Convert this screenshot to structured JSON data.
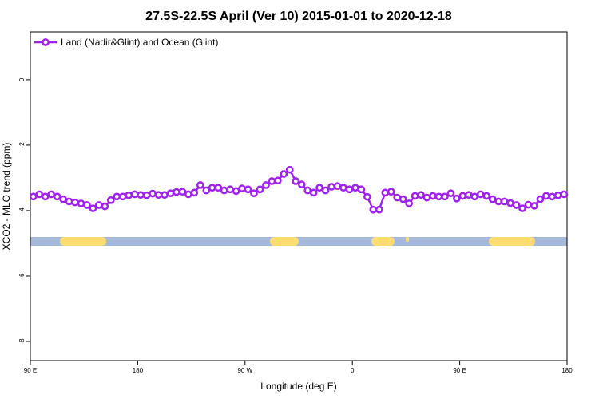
{
  "chart_data": {
    "type": "line",
    "title": "27.5S-22.5S April (Ver 10)   2015-01-01 to 2020-12-18",
    "xlabel": "Longitude (deg E)",
    "ylabel": "XCO2 - MLO trend (ppm)",
    "xlim": [
      90,
      540
    ],
    "ylim": [
      -8.585,
      1.46
    ],
    "xticks": [
      {
        "value": 90,
        "label": "90 E"
      },
      {
        "value": 180,
        "label": "180"
      },
      {
        "value": 270,
        "label": "90 W"
      },
      {
        "value": 360,
        "label": "0"
      },
      {
        "value": 450,
        "label": "90 E"
      },
      {
        "value": 540,
        "label": "180"
      }
    ],
    "yticks": [
      0,
      -2,
      -4,
      -6,
      -8
    ],
    "legend": "top-left",
    "x": [
      92.5,
      97.5,
      102.5,
      107.5,
      112.5,
      117.5,
      122.5,
      127.5,
      132.5,
      137.5,
      142.5,
      147.5,
      152.5,
      157.5,
      162.5,
      167.5,
      172.5,
      177.5,
      182.5,
      187.5,
      192.5,
      197.5,
      202.5,
      207.5,
      212.5,
      217.5,
      222.5,
      227.5,
      232.5,
      237.5,
      242.5,
      247.5,
      252.5,
      257.5,
      262.5,
      267.5,
      272.5,
      277.5,
      282.5,
      287.5,
      292.5,
      297.5,
      302.5,
      307.5,
      312.5,
      317.5,
      322.5,
      327.5,
      332.5,
      337.5,
      342.5,
      347.5,
      352.5,
      357.5,
      362.5,
      367.5,
      372.5,
      377.5,
      382.5,
      387.5,
      392.5,
      397.5,
      402.5,
      407.5,
      412.5,
      417.5,
      422.5,
      427.5,
      432.5,
      437.5,
      442.5,
      447.5,
      452.5,
      457.5,
      462.5,
      467.5,
      472.5,
      477.5,
      482.5,
      487.5,
      492.5,
      497.5,
      502.5,
      507.5,
      512.5,
      517.5,
      522.5,
      527.5,
      532.5,
      537.5
    ],
    "series": [
      {
        "name": "Land (Nadir&Glint) and Ocean (Glint)",
        "color": "#a020f0",
        "values": [
          -3.57,
          -3.5,
          -3.57,
          -3.5,
          -3.57,
          -3.65,
          -3.72,
          -3.75,
          -3.78,
          -3.83,
          -3.93,
          -3.83,
          -3.87,
          -3.68,
          -3.57,
          -3.57,
          -3.53,
          -3.5,
          -3.52,
          -3.53,
          -3.48,
          -3.52,
          -3.52,
          -3.47,
          -3.43,
          -3.42,
          -3.5,
          -3.45,
          -3.22,
          -3.38,
          -3.3,
          -3.3,
          -3.38,
          -3.35,
          -3.4,
          -3.32,
          -3.35,
          -3.47,
          -3.35,
          -3.22,
          -3.1,
          -3.08,
          -2.88,
          -2.75,
          -3.1,
          -3.2,
          -3.38,
          -3.45,
          -3.3,
          -3.38,
          -3.27,
          -3.25,
          -3.3,
          -3.35,
          -3.3,
          -3.35,
          -3.58,
          -3.97,
          -3.97,
          -3.45,
          -3.42,
          -3.6,
          -3.65,
          -3.78,
          -3.55,
          -3.52,
          -3.6,
          -3.55,
          -3.57,
          -3.57,
          -3.47,
          -3.63,
          -3.55,
          -3.52,
          -3.57,
          -3.5,
          -3.55,
          -3.65,
          -3.72,
          -3.72,
          -3.77,
          -3.83,
          -3.93,
          -3.82,
          -3.85,
          -3.65,
          -3.55,
          -3.57,
          -3.53,
          -3.5
        ]
      }
    ]
  }
}
